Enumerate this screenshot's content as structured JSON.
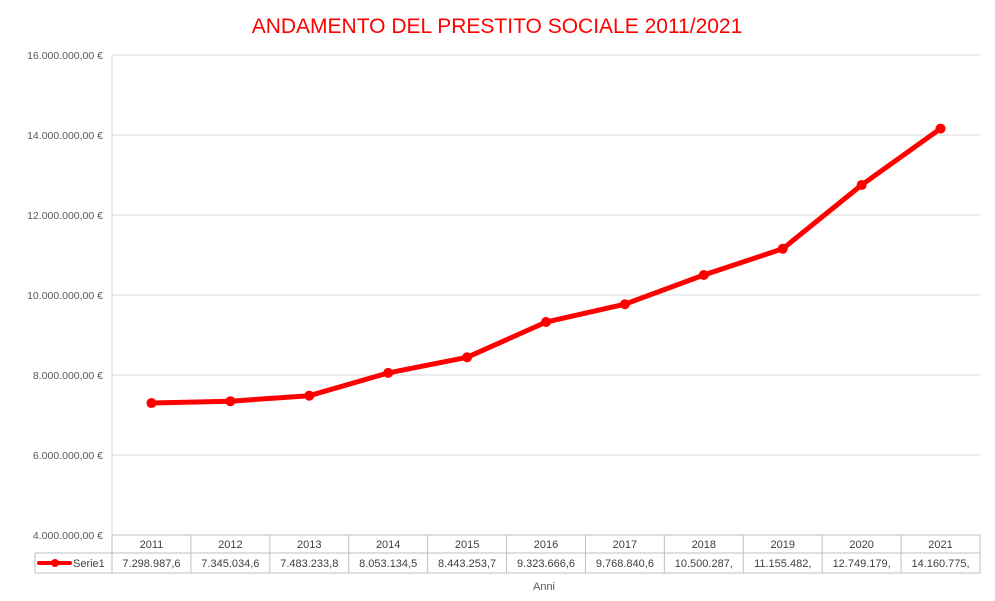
{
  "chart_data": {
    "type": "line",
    "title": "ANDAMENTO DEL PRESTITO SOCIALE 2011/2021",
    "xlabel": "Anni",
    "ylabel": "",
    "categories": [
      "2011",
      "2012",
      "2013",
      "2014",
      "2015",
      "2016",
      "2017",
      "2018",
      "2019",
      "2020",
      "2021"
    ],
    "series": [
      {
        "name": "Serie1",
        "values": [
          7298987.6,
          7345034.6,
          7483233.8,
          8053134.5,
          8443253.7,
          9323666.6,
          9768840.6,
          10500287,
          11155482,
          12749179,
          14160775
        ],
        "table_labels": [
          "7.298.987,6",
          "7.345.034,6",
          "7.483.233,8",
          "8.053.134,5",
          "8.443.253,7",
          "9.323.666,6",
          "9.768.840,6",
          "10.500.287,",
          "11.155.482,",
          "12.749.179,",
          "14.160.775,"
        ]
      }
    ],
    "ylim": [
      4000000,
      16000000
    ],
    "yticks": [
      "4.000.000,00 €",
      "6.000.000,00 €",
      "8.000.000,00 €",
      "10.000.000,00 €",
      "12.000.000,00 €",
      "14.000.000,00 €",
      "16.000.000,00 €"
    ],
    "grid": true,
    "legend": "data-table",
    "colors": {
      "series": "#ff0000",
      "grid": "#d9d9d9",
      "title": "#ff0000"
    }
  }
}
